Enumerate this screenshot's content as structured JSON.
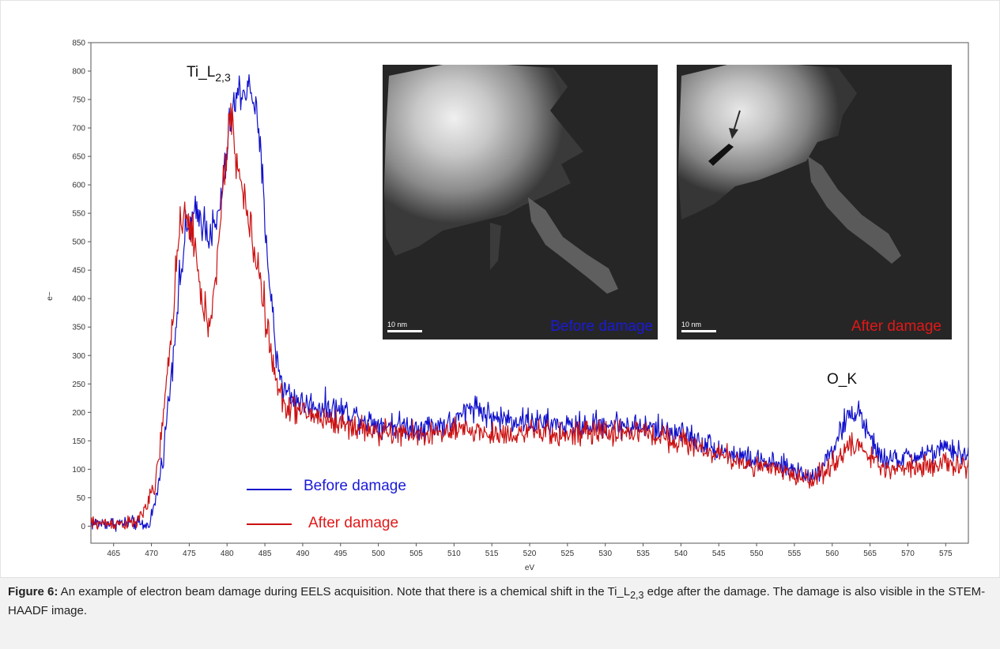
{
  "chart_data": {
    "type": "line",
    "xlabel": "eV",
    "ylabel": "e−",
    "xlim": [
      462,
      578
    ],
    "ylim": [
      -30,
      850
    ],
    "x_ticks": [
      465,
      470,
      475,
      480,
      485,
      490,
      495,
      500,
      505,
      510,
      515,
      520,
      525,
      530,
      535,
      540,
      545,
      550,
      555,
      560,
      565,
      570,
      575
    ],
    "y_ticks": [
      0,
      50,
      100,
      150,
      200,
      250,
      300,
      350,
      400,
      450,
      500,
      550,
      600,
      650,
      700,
      750,
      800,
      850
    ],
    "legend_position": "bottom-left",
    "annotations": {
      "ti_edge_prefix": "Ti_L",
      "ti_edge_subscript": "2,3",
      "ok_edge": "O_K"
    },
    "series": [
      {
        "name": "Before damage",
        "color": "#1010cc",
        "x": [
          462,
          464,
          466,
          468,
          469.5,
          470.5,
          471.5,
          472.5,
          473.5,
          474.5,
          475.5,
          476.5,
          477.5,
          478.5,
          479.5,
          480.5,
          481.5,
          482.5,
          483.5,
          484.5,
          485.5,
          486.5,
          487.5,
          490,
          495,
          500,
          505,
          510,
          512.5,
          515,
          520,
          525,
          530,
          535,
          540,
          545,
          550,
          555,
          557.5,
          560,
          562,
          563.5,
          565,
          567,
          570,
          575,
          578
        ],
        "y": [
          5,
          5,
          5,
          5,
          0,
          40,
          120,
          250,
          400,
          510,
          540,
          545,
          520,
          520,
          600,
          720,
          760,
          770,
          760,
          640,
          450,
          300,
          240,
          215,
          205,
          180,
          175,
          180,
          215,
          190,
          185,
          175,
          180,
          175,
          165,
          135,
          115,
          100,
          85,
          135,
          190,
          205,
          150,
          115,
          120,
          135,
          125
        ]
      },
      {
        "name": "After damage",
        "color": "#cc1010",
        "x": [
          462,
          464,
          466,
          468,
          469.5,
          470.5,
          471.5,
          472.5,
          473.5,
          474.5,
          475.5,
          476.5,
          477.5,
          478.5,
          479.5,
          480.5,
          481.5,
          482.5,
          483.5,
          484.5,
          485.5,
          486.5,
          487.5,
          490,
          495,
          500,
          505,
          510,
          512.5,
          515,
          520,
          525,
          530,
          535,
          540,
          545,
          550,
          555,
          557.5,
          560,
          562,
          563.5,
          565,
          567,
          570,
          575,
          578
        ],
        "y": [
          5,
          5,
          5,
          5,
          40,
          70,
          180,
          320,
          500,
          540,
          520,
          400,
          360,
          420,
          600,
          730,
          620,
          560,
          490,
          430,
          330,
          250,
          215,
          200,
          180,
          165,
          160,
          165,
          170,
          160,
          165,
          160,
          165,
          165,
          150,
          125,
          105,
          90,
          80,
          110,
          135,
          145,
          120,
          100,
          105,
          110,
          100
        ]
      }
    ]
  },
  "insets": [
    {
      "label": "Before damage",
      "label_color": "#1a1ad8",
      "scale_bar": "10 nm"
    },
    {
      "label": "After damage",
      "label_color": "#e01818",
      "scale_bar": "10 nm"
    }
  ],
  "caption": {
    "figure_label": "Figure 6:",
    "text_before_sub": " An example of electron beam damage during EELS acquisition. Note that there is a chemical shift in the Ti_L",
    "subscript": "2,3",
    "text_after_sub": " edge after the damage. The damage is also visible in the STEM-HAADF image."
  }
}
